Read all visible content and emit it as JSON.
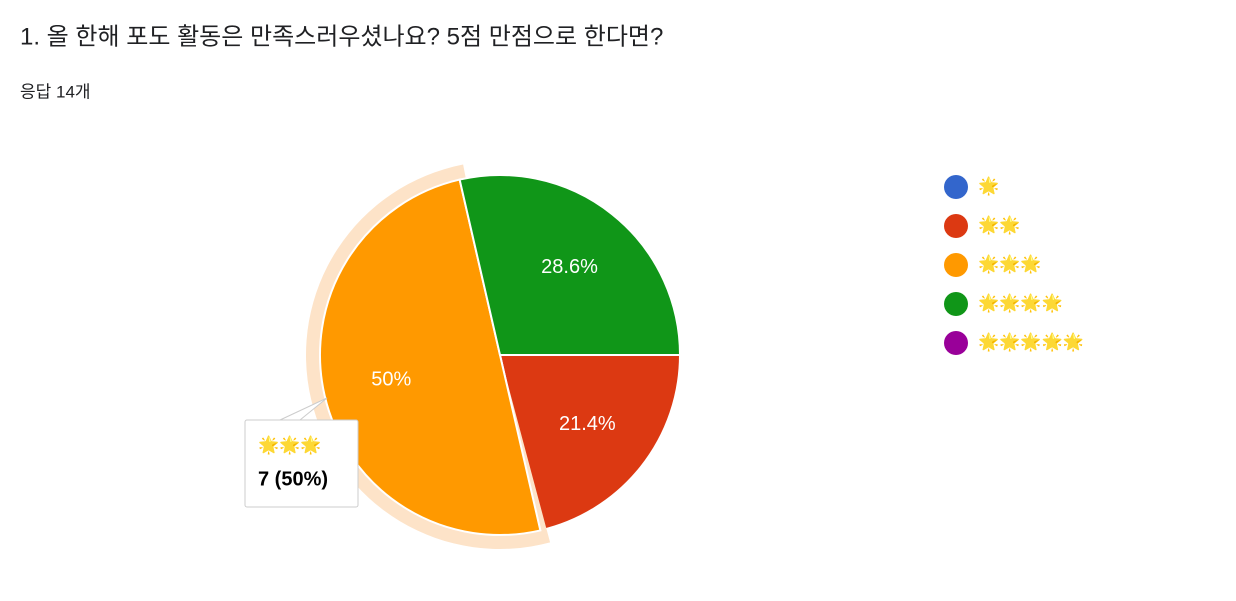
{
  "chart_data": {
    "type": "pie",
    "title": "1. 올 한해 포도 활동은 만족스러우셨나요? 5점 만점으로 한다면?",
    "subtitle": "응답 14개",
    "categories": [
      "🌟",
      "🌟🌟",
      "🌟🌟🌟",
      "🌟🌟🌟🌟",
      "🌟🌟🌟🌟🌟"
    ],
    "values": [
      0,
      21.4,
      50,
      28.6,
      0
    ],
    "value_labels": [
      null,
      "21.4%",
      "50%",
      "28.6%",
      null
    ],
    "colors": [
      "#3366cc",
      "#dc3912",
      "#ff9900",
      "#109618",
      "#990099"
    ],
    "legend": "right",
    "highlight": 2,
    "tooltip": "7 (50%)"
  }
}
